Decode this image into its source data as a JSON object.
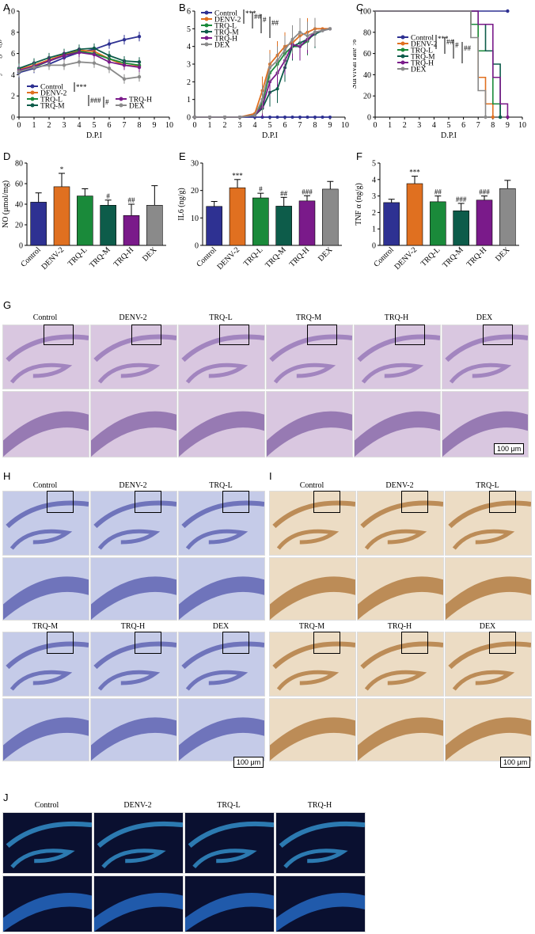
{
  "panels": {
    "A": "A",
    "B": "B",
    "C": "C",
    "D": "D",
    "E": "E",
    "F": "F",
    "G": "G",
    "H": "H",
    "I": "I",
    "J": "J"
  },
  "colors": {
    "Control": "#2e3192",
    "DENV-2": "#e07020",
    "TRQ-L": "#1a8a3a",
    "TRQ-M": "#0d5c4a",
    "TRQ-H": "#7a1a8a",
    "DEX": "#8a8a8a",
    "he_bg": "#d9c7e0",
    "nissl_bg": "#c5cbe8",
    "ihc_bg": "#ecdcc4",
    "if_bg": "#0a1030"
  },
  "chart_data": [
    {
      "id": "A",
      "type": "line",
      "ylabel": "Body weight(g)",
      "xlabel": "D.P.I",
      "xlim": [
        0,
        10
      ],
      "ylim": [
        0,
        10
      ],
      "xticks": [
        "0",
        "1",
        "2",
        "3",
        "4",
        "5",
        "6",
        "7",
        "8",
        "9",
        "10"
      ],
      "yticks": [
        "0",
        "2",
        "4",
        "6",
        "8",
        "10"
      ],
      "x": [
        0,
        1,
        2,
        3,
        4,
        5,
        6,
        7,
        8
      ],
      "series": [
        {
          "name": "Control",
          "values": [
            4.2,
            4.6,
            5.0,
            5.6,
            6.1,
            6.4,
            6.9,
            7.3,
            7.6
          ]
        },
        {
          "name": "DENV-2",
          "values": [
            4.5,
            4.9,
            5.4,
            5.9,
            6.3,
            6.2,
            5.5,
            4.9,
            4.8
          ]
        },
        {
          "name": "TRQ-L",
          "values": [
            4.3,
            4.7,
            5.3,
            5.8,
            6.2,
            6.0,
            5.5,
            5.1,
            4.9
          ]
        },
        {
          "name": "TRQ-M",
          "values": [
            4.6,
            5.1,
            5.6,
            6.0,
            6.4,
            6.5,
            5.8,
            5.3,
            5.2
          ]
        },
        {
          "name": "TRQ-H",
          "values": [
            4.4,
            4.8,
            5.3,
            5.8,
            6.1,
            5.9,
            5.2,
            4.9,
            4.7
          ]
        },
        {
          "name": "DEX",
          "values": [
            4.3,
            4.7,
            4.9,
            4.9,
            5.2,
            5.1,
            4.6,
            3.6,
            3.8
          ]
        }
      ],
      "sig": [
        "***",
        "###",
        "#"
      ],
      "legend_left": [
        "Control",
        "DENV-2",
        "TRQ-L",
        "TRQ-M"
      ],
      "legend_right": [
        "TRQ-H",
        "DEX"
      ]
    },
    {
      "id": "B",
      "type": "line",
      "ylabel": "Clinical score",
      "xlabel": "D.P.I",
      "xlim": [
        0,
        10
      ],
      "ylim": [
        0,
        6
      ],
      "xticks": [
        "0",
        "1",
        "2",
        "3",
        "4",
        "5",
        "6",
        "7",
        "8",
        "9",
        "10"
      ],
      "yticks": [
        "0",
        "1",
        "2",
        "3",
        "4",
        "5",
        "6"
      ],
      "x": [
        0,
        1,
        2,
        3,
        4,
        4.5,
        5,
        5.5,
        6,
        6.5,
        7,
        7.5,
        8,
        8.5,
        9
      ],
      "series": [
        {
          "name": "Control",
          "values": [
            0,
            0,
            0,
            0,
            0,
            0,
            0,
            0,
            0,
            0,
            0,
            0,
            0,
            0,
            0
          ]
        },
        {
          "name": "DENV-2",
          "values": [
            0,
            0,
            0,
            0,
            0.2,
            1.5,
            3.0,
            3.5,
            4.0,
            4.2,
            4.6,
            4.8,
            5.0,
            5.0,
            5.0
          ]
        },
        {
          "name": "TRQ-L",
          "values": [
            0,
            0,
            0,
            0,
            0.1,
            0.8,
            2.5,
            3.0,
            3.6,
            4.0,
            4.0,
            4.3,
            4.8,
            4.9,
            5.0
          ]
        },
        {
          "name": "TRQ-M",
          "values": [
            0,
            0,
            0,
            0,
            0.1,
            0.5,
            1.4,
            1.6,
            2.8,
            4.0,
            4.2,
            4.4,
            4.7,
            4.9,
            5.0
          ]
        },
        {
          "name": "TRQ-H",
          "values": [
            0,
            0,
            0,
            0,
            0.1,
            0.6,
            2.0,
            2.5,
            3.2,
            4.1,
            4.0,
            4.4,
            4.8,
            4.9,
            5.0
          ]
        },
        {
          "name": "DEX",
          "values": [
            0,
            0,
            0,
            0,
            0.1,
            1.0,
            2.8,
            3.2,
            3.8,
            4.4,
            4.8,
            4.6,
            4.8,
            4.9,
            5.0
          ]
        }
      ],
      "sig": [
        "***",
        "##",
        "#",
        "##"
      ],
      "legend": [
        "Control",
        "DENV-2",
        "TRQ-L",
        "TRQ-M",
        "TRQ-H",
        "DEX"
      ]
    },
    {
      "id": "C",
      "type": "line",
      "ylabel": "Survival rate %",
      "xlabel": "D.P.I",
      "xlim": [
        0,
        10
      ],
      "ylim": [
        0,
        100
      ],
      "xticks": [
        "0",
        "1",
        "2",
        "3",
        "4",
        "5",
        "6",
        "7",
        "8",
        "9",
        "10"
      ],
      "yticks": [
        "0",
        "20",
        "40",
        "60",
        "80",
        "100"
      ],
      "series": [
        {
          "name": "Control",
          "steps": [
            [
              0,
              100
            ],
            [
              9,
              100
            ]
          ]
        },
        {
          "name": "DENV-2",
          "steps": [
            [
              0,
              100
            ],
            [
              6.5,
              100
            ],
            [
              6.5,
              87.5
            ],
            [
              7,
              87.5
            ],
            [
              7,
              37.5
            ],
            [
              7.5,
              37.5
            ],
            [
              7.5,
              12.5
            ],
            [
              8,
              12.5
            ],
            [
              8,
              0
            ]
          ]
        },
        {
          "name": "TRQ-L",
          "steps": [
            [
              0,
              100
            ],
            [
              6.5,
              100
            ],
            [
              6.5,
              87.5
            ],
            [
              7,
              87.5
            ],
            [
              7,
              62.5
            ],
            [
              8,
              62.5
            ],
            [
              8,
              12.5
            ],
            [
              8.5,
              12.5
            ],
            [
              8.5,
              0
            ]
          ]
        },
        {
          "name": "TRQ-M",
          "steps": [
            [
              0,
              100
            ],
            [
              7,
              100
            ],
            [
              7,
              87.5
            ],
            [
              7.5,
              87.5
            ],
            [
              7.5,
              62.5
            ],
            [
              8,
              62.5
            ],
            [
              8,
              50
            ],
            [
              8.5,
              50
            ],
            [
              8.5,
              0
            ]
          ]
        },
        {
          "name": "TRQ-H",
          "steps": [
            [
              0,
              100
            ],
            [
              7,
              100
            ],
            [
              7,
              87.5
            ],
            [
              8,
              87.5
            ],
            [
              8,
              37.5
            ],
            [
              8.5,
              37.5
            ],
            [
              8.5,
              12.5
            ],
            [
              9,
              12.5
            ],
            [
              9,
              0
            ]
          ]
        },
        {
          "name": "DEX",
          "steps": [
            [
              0,
              100
            ],
            [
              6.5,
              100
            ],
            [
              6.5,
              75
            ],
            [
              7,
              75
            ],
            [
              7,
              25
            ],
            [
              7.5,
              25
            ],
            [
              7.5,
              0
            ]
          ]
        }
      ],
      "sig": [
        "***",
        "##",
        "#",
        "##"
      ],
      "legend": [
        "Control",
        "DENV-2",
        "TRQ-L",
        "TRQ-M",
        "TRQ-H",
        "DEX"
      ]
    },
    {
      "id": "D",
      "type": "bar",
      "ylabel": "NO (μmol/mg)",
      "ylim": [
        0,
        80
      ],
      "yticks": [
        "0",
        "20",
        "40",
        "60",
        "80"
      ],
      "categories": [
        "Control",
        "DENV-2",
        "TRQ-L",
        "TRQ-M",
        "TRQ-H",
        "DEX"
      ],
      "values": [
        42,
        57,
        48,
        39,
        29,
        39
      ],
      "errors": [
        9,
        13,
        7,
        5,
        11,
        19
      ],
      "marks": [
        "",
        "*",
        "",
        "#",
        "##",
        ""
      ]
    },
    {
      "id": "E",
      "type": "bar",
      "ylabel": "IL6 (ng/g)",
      "ylim": [
        0,
        30
      ],
      "yticks": [
        "0",
        "10",
        "20",
        "30"
      ],
      "categories": [
        "Control",
        "DENV-2",
        "TRQ-L",
        "TRQ-M",
        "TRQ-H",
        "DEX"
      ],
      "values": [
        14.2,
        21,
        17.3,
        14.3,
        16.2,
        20.5
      ],
      "errors": [
        1.8,
        3.0,
        1.7,
        3.2,
        1.9,
        2.8
      ],
      "marks": [
        "",
        "***",
        "#",
        "##",
        "###",
        ""
      ]
    },
    {
      "id": "F",
      "type": "bar",
      "ylabel": "TNF α (ng/g)",
      "ylim": [
        0,
        5
      ],
      "yticks": [
        "0",
        "1",
        "2",
        "3",
        "4",
        "5"
      ],
      "categories": [
        "Control",
        "DENV-2",
        "TRQ-L",
        "TRQ-M",
        "TRQ-H",
        "DEX"
      ],
      "values": [
        2.6,
        3.75,
        2.65,
        2.1,
        2.75,
        3.45
      ],
      "errors": [
        0.2,
        0.45,
        0.35,
        0.45,
        0.25,
        0.5
      ],
      "marks": [
        "",
        "***",
        "##",
        "###",
        "###",
        ""
      ]
    }
  ],
  "histology": {
    "G_labels": [
      "Control",
      "DENV-2",
      "TRQ-L",
      "TRQ-M",
      "TRQ-H",
      "DEX"
    ],
    "H_labels_top": [
      "Control",
      "DENV-2",
      "TRQ-L"
    ],
    "H_labels_bottom": [
      "TRQ-M",
      "TRQ-H",
      "DEX"
    ],
    "I_labels_top": [
      "Control",
      "DENV-2",
      "TRQ-L"
    ],
    "I_labels_bottom": [
      "TRQ-M",
      "TRQ-H",
      "DEX"
    ],
    "J_labels": [
      "Control",
      "DENV-2",
      "TRQ-L",
      "TRQ-H"
    ],
    "scale": "100 μm"
  }
}
